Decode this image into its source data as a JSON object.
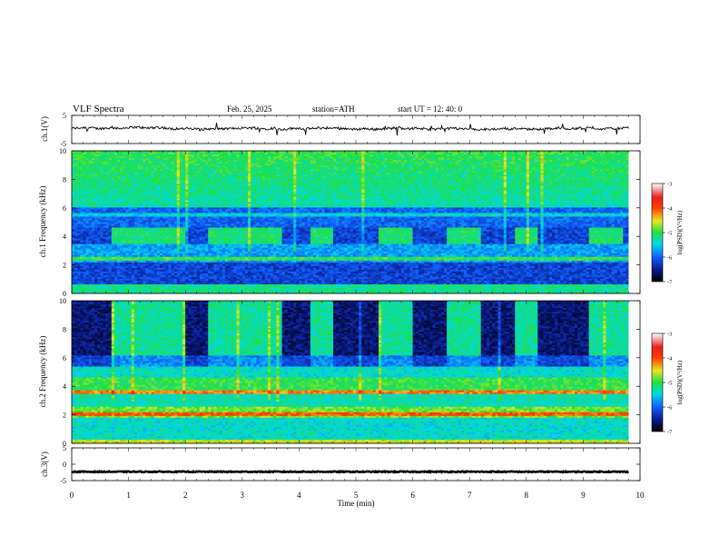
{
  "header": {
    "title": "VLF  Spectra",
    "date": "Feb. 25, 2025",
    "station": "station=ATH",
    "start": "start  UT  =   12: 40: 0"
  },
  "chart_data": [
    {
      "type": "line",
      "panel": "ch1-waveform",
      "ylabel": "ch.1(V)",
      "ylim": [
        -5,
        5
      ],
      "yticks": [
        "5",
        "-5"
      ],
      "xlim": [
        0,
        10
      ],
      "baseline": 0.3,
      "color": "#000000"
    },
    {
      "type": "heatmap",
      "panel": "ch1-spectrogram",
      "ylabel": "ch.1 Frequency  (kHz)",
      "ylim": [
        0,
        10
      ],
      "yticks": [
        "0",
        "2",
        "4",
        "6",
        "8",
        "10"
      ],
      "xlim": [
        0,
        9.8
      ],
      "colorbar": {
        "label": "log(PSD)(V²/Hz)",
        "ticks": [
          "-3",
          "-4",
          "-5",
          "-6",
          "-7"
        ],
        "range": [
          -7,
          -3
        ]
      },
      "band_segments": [
        [
          0.7,
          2.0
        ],
        [
          2.4,
          3.7
        ],
        [
          4.2,
          4.6
        ],
        [
          5.4,
          6.0
        ],
        [
          6.6,
          7.2
        ],
        [
          7.8,
          8.2
        ],
        [
          9.1,
          9.7
        ]
      ],
      "band_freq": [
        3.6,
        4.4
      ]
    },
    {
      "type": "heatmap",
      "panel": "ch2-spectrogram",
      "ylabel": "ch.2 Frequency  (kHz)",
      "ylim": [
        0,
        10
      ],
      "yticks": [
        "0",
        "2",
        "4",
        "6",
        "8",
        "10"
      ],
      "xlim": [
        0,
        9.8
      ],
      "colorbar": {
        "label": "log(PSD)(V²/Hz)",
        "ticks": [
          "-3",
          "-4",
          "-5",
          "-6",
          "-7"
        ],
        "range": [
          -7,
          -3
        ]
      },
      "dark_segments": [
        [
          0,
          0.7
        ],
        [
          2.0,
          2.4
        ],
        [
          3.7,
          4.2
        ],
        [
          4.6,
          5.4
        ],
        [
          6.0,
          6.6
        ],
        [
          7.2,
          7.8
        ],
        [
          8.2,
          9.1
        ]
      ]
    },
    {
      "type": "line",
      "panel": "ch3-waveform",
      "ylabel": "ch.3(V)",
      "ylim": [
        -5,
        5
      ],
      "yticks": [
        "5",
        "0",
        "-5"
      ],
      "xlim": [
        0,
        10
      ],
      "xticks": [
        "0",
        "1",
        "2",
        "3",
        "4",
        "5",
        "6",
        "7",
        "8",
        "9",
        "10"
      ],
      "xlabel": "Time  (min)",
      "baseline": -2.3,
      "color": "#000000"
    }
  ]
}
